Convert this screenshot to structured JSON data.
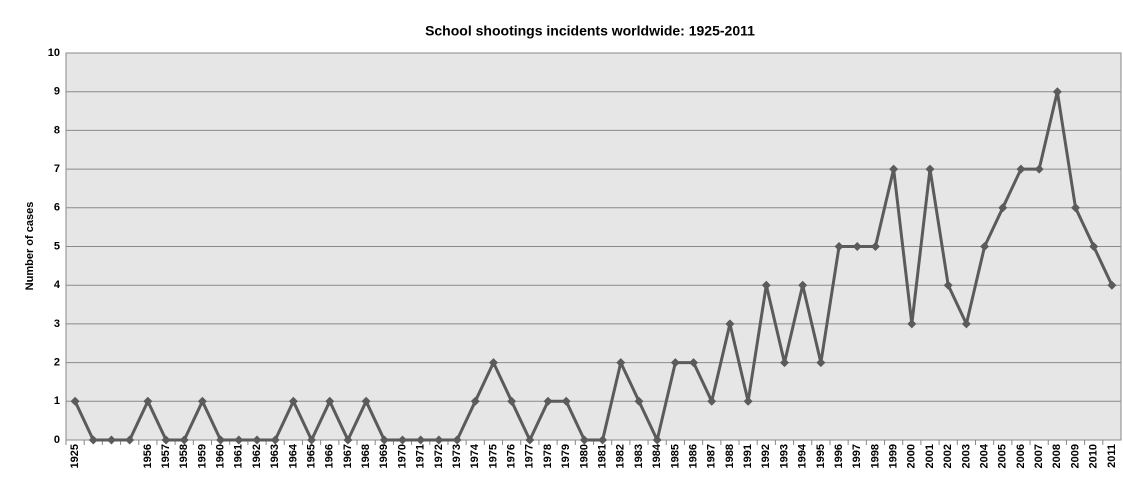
{
  "chart_data": {
    "type": "line",
    "title": "School shootings incidents worldwide: 1925-2011",
    "y_label": "Number of cases",
    "categories": [
      "1925",
      null,
      null,
      null,
      "1956",
      "1957",
      "1958",
      "1959",
      "1960",
      "1961",
      "1962",
      "1963",
      "1964",
      "1965",
      "1966",
      "1967",
      "1968",
      "1969",
      "1970",
      "1971",
      "1972",
      "1973",
      "1974",
      "1975",
      "1976",
      "1977",
      "1978",
      "1979",
      "1980",
      "1981",
      "1982",
      "1983",
      "1984",
      "1985",
      "1986",
      "1987",
      "1988",
      "1991",
      "1992",
      "1993",
      "1994",
      "1995",
      "1996",
      "1997",
      "1998",
      "1999",
      "2000",
      "2001",
      "2002",
      "2003",
      "2004",
      "2005",
      "2006",
      "2007",
      "2008",
      "2009",
      "2010",
      "2011"
    ],
    "values": [
      1,
      0,
      0,
      0,
      1,
      0,
      0,
      1,
      0,
      0,
      0,
      0,
      1,
      0,
      1,
      0,
      1,
      0,
      0,
      0,
      0,
      0,
      1,
      2,
      1,
      0,
      1,
      1,
      0,
      0,
      2,
      1,
      0,
      2,
      2,
      1,
      3,
      1,
      4,
      2,
      4,
      2,
      5,
      5,
      5,
      7,
      3,
      7,
      4,
      3,
      5,
      6,
      7,
      7,
      9,
      6,
      5,
      4
    ],
    "color": "#5b5b5b",
    "ylim": [
      0,
      10
    ],
    "yticks": [
      0,
      1,
      2,
      3,
      4,
      5,
      6,
      7,
      8,
      9,
      10
    ],
    "grid": true
  }
}
